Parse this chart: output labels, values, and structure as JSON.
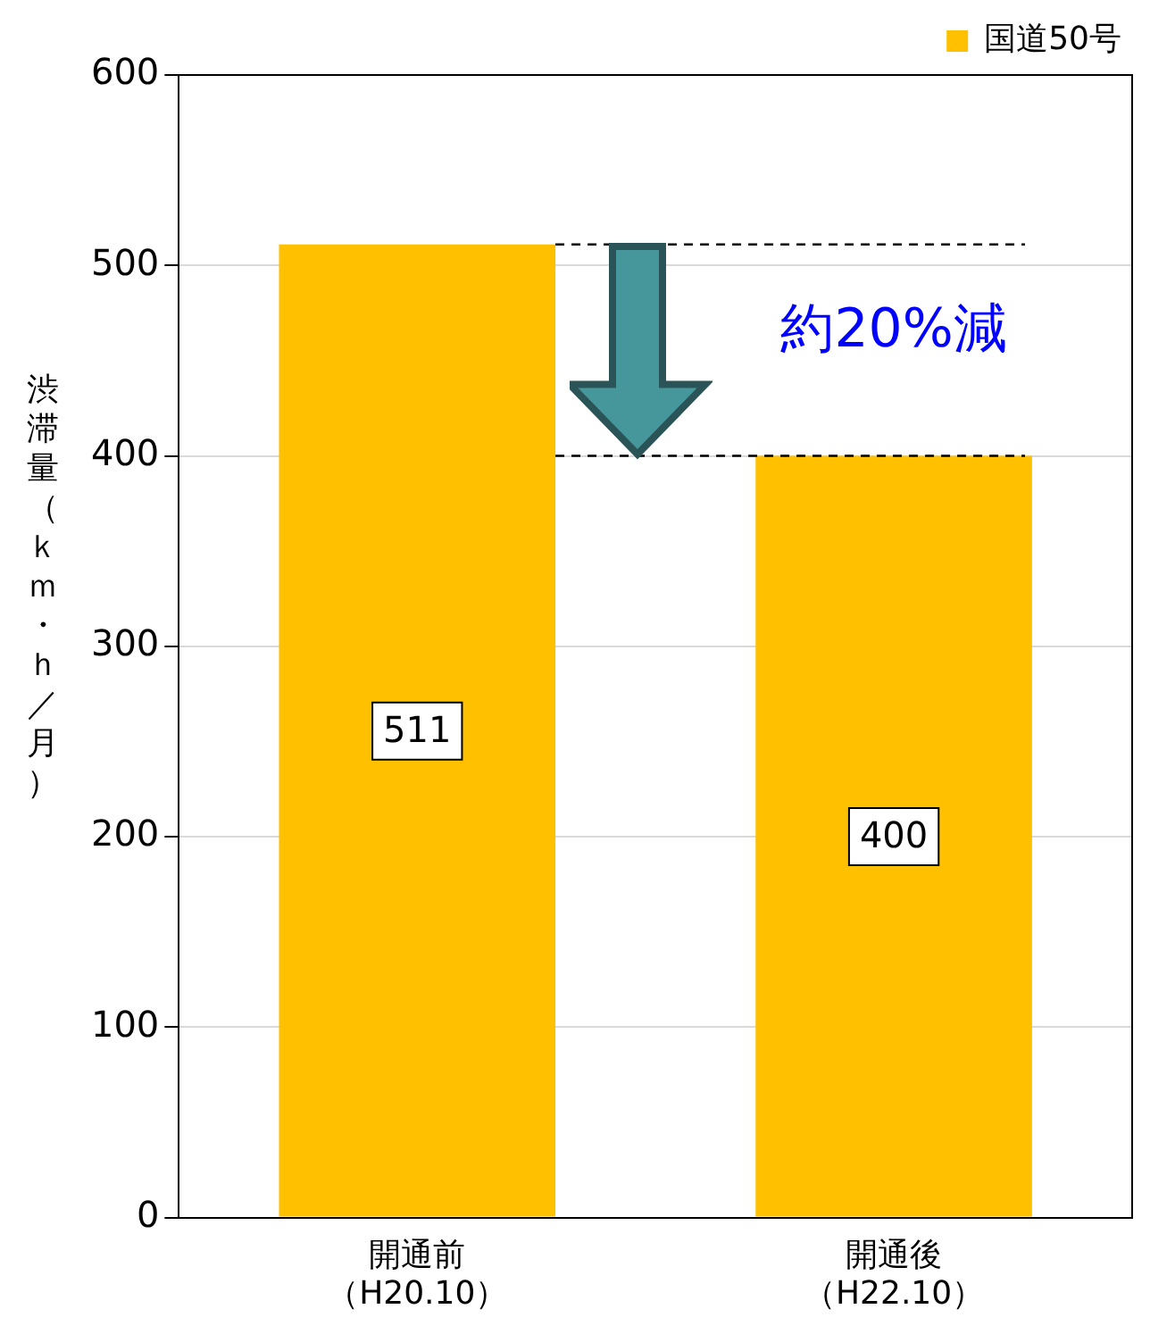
{
  "chart_data": {
    "type": "bar",
    "ylabel": "渋滞量（ｋｍ・ｈ／月）",
    "categories": [
      "開通前（H20.10）",
      "開通後（H22.10）"
    ],
    "series": [
      {
        "name": "国道50号",
        "color": "#ffc000",
        "values": [
          511,
          400
        ]
      }
    ],
    "ylim": [
      0,
      600
    ],
    "yticks": [
      0,
      100,
      200,
      300,
      400,
      500,
      600
    ],
    "grid": "y",
    "legend": "top right",
    "data_labels": true,
    "ref_lines": [
      {
        "axis": "y",
        "value": 511,
        "line_style": "dashed",
        "color": "#000000"
      },
      {
        "axis": "y",
        "value": 400,
        "line_style": "dashed",
        "color": "#000000"
      }
    ],
    "annotations": [
      "約20%減"
    ]
  }
}
